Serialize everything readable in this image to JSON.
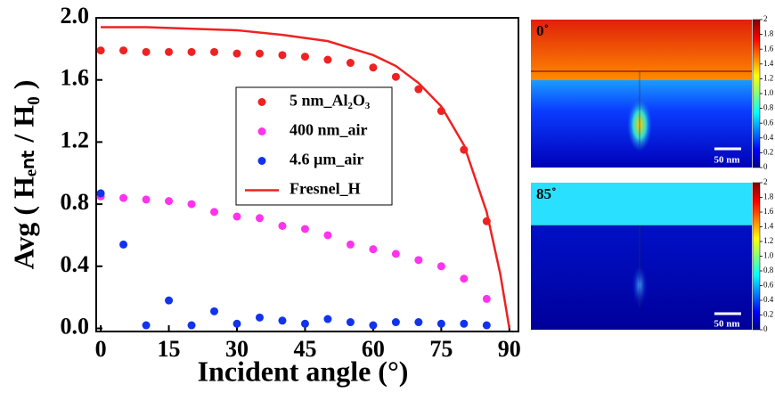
{
  "chart_data": {
    "type": "scatter",
    "x_label": "Incident angle (°)",
    "y_label": "Avg ( Hₑₙₜ / H₀ )",
    "xlim": [
      -1,
      92
    ],
    "ylim": [
      -0.02,
      2.0
    ],
    "xticks": [
      0,
      15,
      30,
      45,
      60,
      75,
      90
    ],
    "yticks": [
      {
        "value": 0,
        "label": "0.0"
      },
      {
        "value": 0.4,
        "label": "0.4"
      },
      {
        "value": 0.8,
        "label": "0.8"
      },
      {
        "value": 1.2,
        "label": "1.2"
      },
      {
        "value": 1.6,
        "label": "1.6"
      },
      {
        "value": 2.0,
        "label": "2.0"
      }
    ],
    "legend": "upper center",
    "series": [
      {
        "name": "5 nm_Al₂O₃",
        "color": "#ee2222",
        "style": "markers",
        "x": [
          0,
          5,
          10,
          15,
          20,
          25,
          30,
          35,
          40,
          45,
          50,
          55,
          60,
          65,
          70,
          75,
          80,
          85
        ],
        "values": [
          1.79,
          1.79,
          1.78,
          1.78,
          1.78,
          1.78,
          1.77,
          1.77,
          1.76,
          1.75,
          1.73,
          1.71,
          1.68,
          1.62,
          1.54,
          1.4,
          1.15,
          0.69
        ]
      },
      {
        "name": "400 nm_air",
        "color": "#ff33ee",
        "style": "markers",
        "x": [
          0,
          5,
          10,
          15,
          20,
          25,
          30,
          35,
          40,
          45,
          50,
          55,
          60,
          65,
          70,
          75,
          80,
          85
        ],
        "values": [
          0.85,
          0.84,
          0.83,
          0.82,
          0.8,
          0.75,
          0.72,
          0.71,
          0.66,
          0.64,
          0.6,
          0.54,
          0.51,
          0.48,
          0.44,
          0.4,
          0.32,
          0.19
        ]
      },
      {
        "name": "4.6 µm_air",
        "color": "#1133ee",
        "style": "markers",
        "x": [
          0,
          5,
          10,
          15,
          20,
          25,
          30,
          35,
          40,
          45,
          50,
          55,
          60,
          65,
          70,
          75,
          80,
          85
        ],
        "values": [
          0.87,
          0.54,
          0.02,
          0.18,
          0.02,
          0.11,
          0.03,
          0.07,
          0.05,
          0.03,
          0.06,
          0.04,
          0.02,
          0.04,
          0.04,
          0.03,
          0.03,
          0.02
        ]
      },
      {
        "name": "Fresnel_H",
        "color": "#ee2222",
        "style": "line",
        "x": [
          0,
          10,
          20,
          30,
          40,
          50,
          60,
          65,
          70,
          75,
          80,
          85,
          88,
          90
        ],
        "values": [
          1.94,
          1.94,
          1.93,
          1.92,
          1.89,
          1.85,
          1.76,
          1.69,
          1.58,
          1.43,
          1.18,
          0.75,
          0.35,
          0
        ]
      }
    ]
  },
  "panels": [
    {
      "label": "0˚",
      "scale_bar": "50 nm"
    },
    {
      "label": "85˚",
      "scale_bar": "50 nm"
    }
  ],
  "colorbar": {
    "ticks": [
      0,
      0.2,
      0.4,
      0.6,
      0.8,
      {
        "value": 1.0,
        "label": "1.0"
      },
      1.2,
      1.4,
      1.6,
      1.8,
      2
    ]
  }
}
